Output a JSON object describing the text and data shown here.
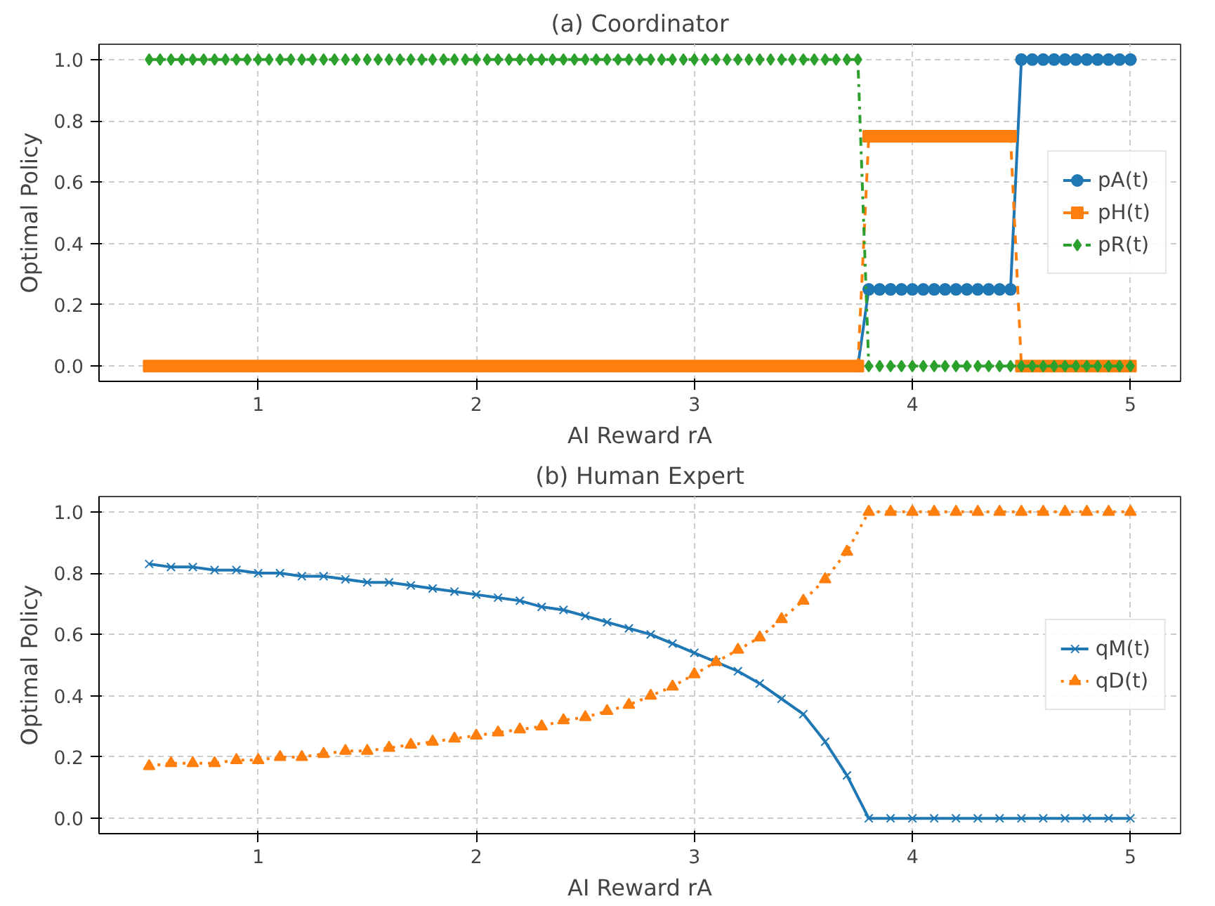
{
  "chart_data": [
    {
      "type": "line",
      "title": "(a) Coordinator",
      "xlabel": "AI Reward rA",
      "ylabel": "Optimal Policy",
      "x": [
        0.5,
        0.55,
        0.6,
        0.65,
        0.7,
        0.75,
        0.8,
        0.85,
        0.9,
        0.95,
        1.0,
        1.05,
        1.1,
        1.15,
        1.2,
        1.25,
        1.3,
        1.35,
        1.4,
        1.45,
        1.5,
        1.55,
        1.6,
        1.65,
        1.7,
        1.75,
        1.8,
        1.85,
        1.9,
        1.95,
        2.0,
        2.05,
        2.1,
        2.15,
        2.2,
        2.25,
        2.3,
        2.35,
        2.4,
        2.45,
        2.5,
        2.55,
        2.6,
        2.65,
        2.7,
        2.75,
        2.8,
        2.85,
        2.9,
        2.95,
        3.0,
        3.05,
        3.1,
        3.15,
        3.2,
        3.25,
        3.3,
        3.35,
        3.4,
        3.45,
        3.5,
        3.55,
        3.6,
        3.65,
        3.7,
        3.75,
        3.8,
        3.85,
        3.9,
        3.95,
        4.0,
        4.05,
        4.1,
        4.15,
        4.2,
        4.25,
        4.3,
        4.35,
        4.4,
        4.45,
        4.5,
        4.55,
        4.6,
        4.65,
        4.7,
        4.75,
        4.8,
        4.85,
        4.9,
        4.95,
        5.0
      ],
      "series": [
        {
          "name": "pA(t)",
          "color": "#1f77b4",
          "marker": "circle",
          "line_style": "solid",
          "values": [
            null,
            null,
            null,
            null,
            null,
            null,
            null,
            null,
            null,
            null,
            null,
            null,
            null,
            null,
            null,
            null,
            null,
            null,
            null,
            null,
            null,
            null,
            null,
            null,
            null,
            null,
            null,
            null,
            null,
            null,
            null,
            null,
            null,
            null,
            null,
            null,
            null,
            null,
            null,
            null,
            null,
            null,
            null,
            null,
            null,
            null,
            null,
            null,
            null,
            null,
            null,
            null,
            null,
            null,
            null,
            null,
            null,
            null,
            null,
            null,
            null,
            null,
            null,
            null,
            null,
            0,
            0.25,
            0.25,
            0.25,
            0.25,
            0.25,
            0.25,
            0.25,
            0.25,
            0.25,
            0.25,
            0.25,
            0.25,
            0.25,
            0.25,
            1,
            1,
            1,
            1,
            1,
            1,
            1,
            1,
            1,
            1,
            1
          ]
        },
        {
          "name": "pH(t)",
          "color": "#ff7f0e",
          "marker": "square",
          "line_style": "dashed",
          "values": [
            0,
            0,
            0,
            0,
            0,
            0,
            0,
            0,
            0,
            0,
            0,
            0,
            0,
            0,
            0,
            0,
            0,
            0,
            0,
            0,
            0,
            0,
            0,
            0,
            0,
            0,
            0,
            0,
            0,
            0,
            0,
            0,
            0,
            0,
            0,
            0,
            0,
            0,
            0,
            0,
            0,
            0,
            0,
            0,
            0,
            0,
            0,
            0,
            0,
            0,
            0,
            0,
            0,
            0,
            0,
            0,
            0,
            0,
            0,
            0,
            0,
            0,
            0,
            0,
            0,
            0,
            0.75,
            0.75,
            0.75,
            0.75,
            0.75,
            0.75,
            0.75,
            0.75,
            0.75,
            0.75,
            0.75,
            0.75,
            0.75,
            0.75,
            0,
            0,
            0,
            0,
            0,
            0,
            0,
            0,
            0,
            0,
            0
          ]
        },
        {
          "name": "pR(t)",
          "color": "#2ca02c",
          "marker": "diamond",
          "line_style": "dashdot",
          "values": [
            1,
            1,
            1,
            1,
            1,
            1,
            1,
            1,
            1,
            1,
            1,
            1,
            1,
            1,
            1,
            1,
            1,
            1,
            1,
            1,
            1,
            1,
            1,
            1,
            1,
            1,
            1,
            1,
            1,
            1,
            1,
            1,
            1,
            1,
            1,
            1,
            1,
            1,
            1,
            1,
            1,
            1,
            1,
            1,
            1,
            1,
            1,
            1,
            1,
            1,
            1,
            1,
            1,
            1,
            1,
            1,
            1,
            1,
            1,
            1,
            1,
            1,
            1,
            1,
            1,
            1,
            0,
            0,
            0,
            0,
            0,
            0,
            0,
            0,
            0,
            0,
            0,
            0,
            0,
            0,
            0,
            0,
            0,
            0,
            0,
            0,
            0,
            0,
            0,
            0,
            0
          ]
        }
      ],
      "xlim": [
        0.27,
        5.23
      ],
      "ylim": [
        -0.05,
        1.05
      ],
      "xticks": [
        1,
        2,
        3,
        4,
        5
      ],
      "yticks": [
        {
          "value": 0,
          "label": "0.0"
        },
        {
          "value": 0.2,
          "label": "0.2"
        },
        {
          "value": 0.4,
          "label": "0.4"
        },
        {
          "value": 0.6,
          "label": "0.6"
        },
        {
          "value": 0.8,
          "label": "0.8"
        },
        {
          "value": 1,
          "label": "1.0"
        }
      ],
      "grid": true,
      "legend": "right"
    },
    {
      "type": "line",
      "title": "(b) Human Expert",
      "xlabel": "AI Reward rA",
      "ylabel": "Optimal Policy",
      "x": [
        0.5,
        0.6,
        0.7,
        0.8,
        0.9,
        1.0,
        1.1,
        1.2,
        1.3,
        1.4,
        1.5,
        1.6,
        1.7,
        1.8,
        1.9,
        2.0,
        2.1,
        2.2,
        2.3,
        2.4,
        2.5,
        2.6,
        2.7,
        2.8,
        2.9,
        3.0,
        3.1,
        3.2,
        3.3,
        3.4,
        3.5,
        3.6,
        3.7,
        3.8,
        3.9,
        4.0,
        4.1,
        4.2,
        4.3,
        4.4,
        4.5,
        4.6,
        4.7,
        4.8,
        4.9,
        5.0
      ],
      "series": [
        {
          "name": "qM(t)",
          "color": "#1f77b4",
          "marker": "cross",
          "line_style": "solid",
          "values": [
            0.83,
            0.82,
            0.82,
            0.81,
            0.81,
            0.8,
            0.8,
            0.79,
            0.79,
            0.78,
            0.77,
            0.77,
            0.76,
            0.75,
            0.74,
            0.73,
            0.72,
            0.71,
            0.69,
            0.68,
            0.66,
            0.64,
            0.62,
            0.6,
            0.57,
            0.54,
            0.51,
            0.48,
            0.44,
            0.39,
            0.34,
            0.25,
            0.14,
            0,
            0,
            0,
            0,
            0,
            0,
            0,
            0,
            0,
            0,
            0,
            0,
            0
          ]
        },
        {
          "name": "qD(t)",
          "color": "#ff7f0e",
          "marker": "triangle",
          "line_style": "dotted",
          "values": [
            0.17,
            0.18,
            0.18,
            0.18,
            0.19,
            0.19,
            0.2,
            0.2,
            0.21,
            0.22,
            0.22,
            0.23,
            0.24,
            0.25,
            0.26,
            0.27,
            0.28,
            0.29,
            0.3,
            0.32,
            0.33,
            0.35,
            0.37,
            0.4,
            0.43,
            0.47,
            0.51,
            0.55,
            0.59,
            0.65,
            0.71,
            0.78,
            0.87,
            1,
            1,
            1,
            1,
            1,
            1,
            1,
            1,
            1,
            1,
            1,
            1,
            1
          ]
        }
      ],
      "xlim": [
        0.27,
        5.23
      ],
      "ylim": [
        -0.05,
        1.05
      ],
      "xticks": [
        1,
        2,
        3,
        4,
        5
      ],
      "yticks": [
        {
          "value": 0,
          "label": "0.0"
        },
        {
          "value": 0.2,
          "label": "0.2"
        },
        {
          "value": 0.4,
          "label": "0.4"
        },
        {
          "value": 0.6,
          "label": "0.6"
        },
        {
          "value": 0.8,
          "label": "0.8"
        },
        {
          "value": 1,
          "label": "1.0"
        }
      ],
      "grid": true,
      "legend": "right"
    }
  ]
}
